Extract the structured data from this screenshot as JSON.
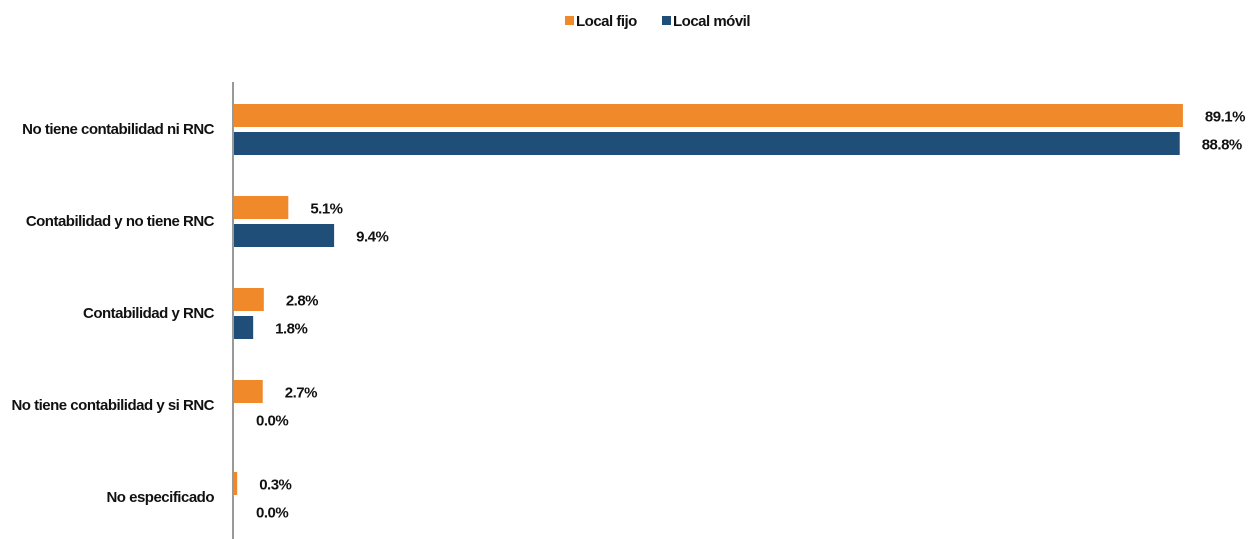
{
  "chart_data": {
    "type": "bar",
    "orientation": "horizontal",
    "categories": [
      "No tiene contabilidad ni RNC",
      "Contabilidad y no tiene RNC",
      "Contabilidad y RNC",
      "No tiene contabilidad y si RNC",
      "No especificado"
    ],
    "series": [
      {
        "name": "Local fijo",
        "color": "#f0892a",
        "values": [
          89.1,
          5.1,
          2.8,
          2.7,
          0.3
        ],
        "value_labels": [
          "89.1%",
          "5.1%",
          "2.8%",
          "2.7%",
          "0.3%"
        ]
      },
      {
        "name": "Local móvil",
        "color": "#1f4e79",
        "values": [
          88.8,
          9.4,
          1.8,
          0.0,
          0.0
        ],
        "value_labels": [
          "88.8%",
          "9.4%",
          "1.8%",
          "0.0%",
          "0.0%"
        ]
      }
    ],
    "legend": "top"
  }
}
